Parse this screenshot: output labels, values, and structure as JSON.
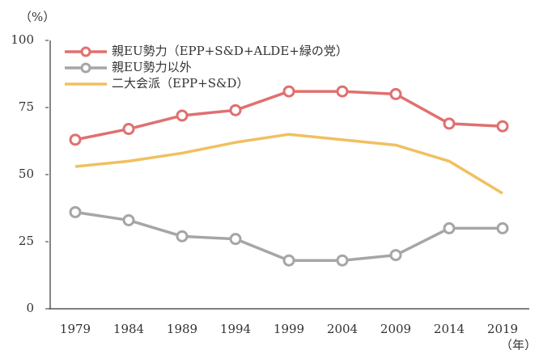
{
  "chart_data": {
    "type": "line",
    "y_unit": "（%）",
    "x_unit": "（年）",
    "categories": [
      "1979",
      "1984",
      "1989",
      "1994",
      "1999",
      "2004",
      "2009",
      "2014",
      "2019"
    ],
    "series": [
      {
        "name": "親EU勢力（EPP+S&D+ALDE+緑の党）",
        "color": "#e07070",
        "markers": true,
        "values": [
          63,
          67,
          72,
          74,
          81,
          81,
          80,
          69,
          68
        ]
      },
      {
        "name": "親EU勢力以外",
        "color": "#a6a6a6",
        "markers": true,
        "values": [
          36,
          33,
          27,
          26,
          18,
          18,
          20,
          30,
          30
        ]
      },
      {
        "name": "二大会派（EPP+S&D）",
        "color": "#f0c060",
        "markers": false,
        "values": [
          53,
          55,
          58,
          62,
          65,
          63,
          61,
          55,
          43
        ]
      }
    ],
    "ylim": [
      0,
      100
    ],
    "yticks": [
      0,
      25,
      50,
      75,
      100
    ],
    "grid": false,
    "legend": "top-left"
  }
}
